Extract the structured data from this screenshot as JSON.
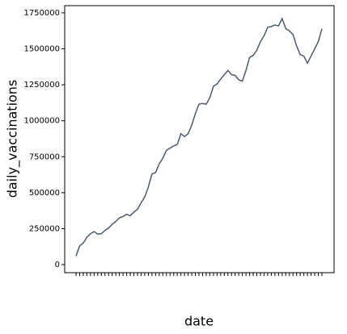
{
  "chart_data": {
    "type": "line",
    "x_label": "date",
    "y_label": "daily_vaccinations",
    "categories": [
      null,
      null,
      null,
      null,
      null,
      null,
      null,
      null,
      null,
      null,
      null,
      null,
      null,
      null,
      null,
      null,
      null,
      null,
      null,
      null,
      null,
      null,
      null,
      null,
      null,
      null,
      null,
      null,
      null,
      null,
      null,
      null,
      null,
      null,
      null,
      null,
      null,
      null,
      null,
      null,
      null,
      null,
      null,
      null,
      null,
      null,
      null,
      null,
      null,
      null,
      null,
      null,
      null,
      null,
      null,
      null,
      null,
      null,
      null,
      null,
      null,
      null,
      null,
      null,
      null,
      null,
      null,
      null,
      null
    ],
    "values": [
      60000,
      130000,
      150000,
      190000,
      215000,
      230000,
      212000,
      215000,
      237000,
      255000,
      280000,
      300000,
      325000,
      335000,
      350000,
      340000,
      365000,
      385000,
      430000,
      470000,
      540000,
      630000,
      640000,
      700000,
      740000,
      795000,
      810000,
      825000,
      835000,
      910000,
      890000,
      910000,
      970000,
      1050000,
      1115000,
      1120000,
      1115000,
      1160000,
      1240000,
      1255000,
      1290000,
      1320000,
      1350000,
      1320000,
      1315000,
      1285000,
      1275000,
      1350000,
      1440000,
      1455000,
      1490000,
      1550000,
      1590000,
      1650000,
      1655000,
      1665000,
      1660000,
      1710000,
      1640000,
      1625000,
      1600000,
      1520000,
      1460000,
      1450000,
      1400000,
      1450000,
      1500000,
      1550000,
      1640000
    ],
    "color": "#4c5b70",
    "ylim": [
      -56000,
      1800000
    ],
    "yticks": [
      0,
      250000,
      500000,
      750000,
      1000000,
      1250000,
      1500000,
      1750000
    ],
    "grid": false
  }
}
